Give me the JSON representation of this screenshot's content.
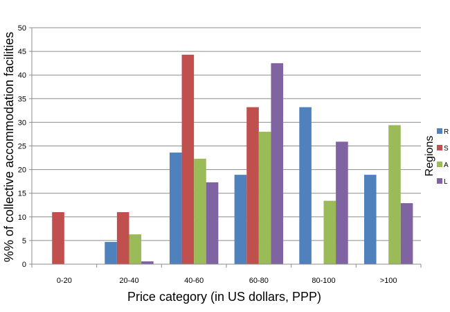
{
  "chart_data": {
    "type": "bar",
    "categories": [
      "0-20",
      "20-40",
      "40-60",
      "60-80",
      "80-100",
      ">100"
    ],
    "series": [
      {
        "name": "R",
        "color": "#4F81BD",
        "values": [
          0,
          4.7,
          23.6,
          18.9,
          33.2,
          18.9
        ]
      },
      {
        "name": "S",
        "color": "#C0504D",
        "values": [
          11.0,
          11.0,
          44.3,
          33.2,
          0,
          0
        ]
      },
      {
        "name": "A",
        "color": "#9BBB59",
        "values": [
          0,
          6.3,
          22.3,
          28.0,
          13.4,
          29.4
        ]
      },
      {
        "name": "L",
        "color": "#8064A2",
        "values": [
          0,
          0.6,
          17.3,
          42.5,
          25.9,
          12.9
        ]
      }
    ],
    "xlabel": "Price category (in US dollars, PPP)",
    "ylabel": "%% of collective accommodation facilities",
    "legend_title": "Regions",
    "ylim": [
      0,
      50
    ],
    "yticks": [
      0,
      5,
      10,
      15,
      20,
      25,
      30,
      35,
      40,
      45,
      50
    ],
    "grid": true,
    "legend_position": "right"
  }
}
